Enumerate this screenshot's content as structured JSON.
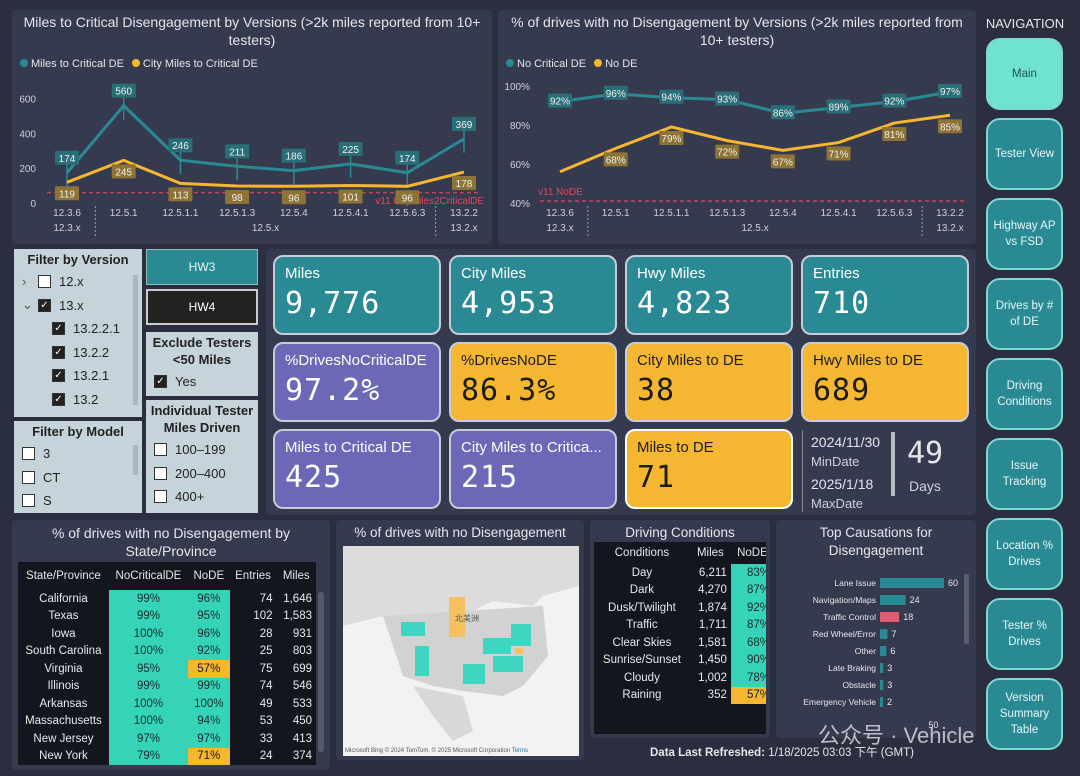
{
  "chart1": {
    "title": "Miles to Critical Disengagement by Versions (>2k miles reported from 10+ testers)",
    "legend": [
      "Miles to Critical DE",
      "City Miles to Critical DE"
    ],
    "colors": {
      "teal": "#2a8a94",
      "gold": "#f5b731"
    },
    "yticks": [
      "600",
      "400",
      "200",
      "0"
    ],
    "ref_label": "v11 CityMiles2CriticalDE",
    "versions": [
      "12.3.6",
      "12.5.1",
      "12.5.1.1",
      "12.5.1.3",
      "12.5.4",
      "12.5.4.1",
      "12.5.6.3",
      "13.2.2"
    ],
    "groups": [
      "12.3.x",
      "12.5.x",
      "13.2.x"
    ],
    "teal_labels": [
      "174",
      "560",
      "246",
      "211",
      "186",
      "225",
      "174",
      "369"
    ],
    "gold_labels": [
      "119",
      "245",
      "113",
      "98",
      "96",
      "101",
      "96",
      "178"
    ]
  },
  "chart2": {
    "title": "% of drives with no Disengagement by Versions (>2k miles reported from 10+ testers)",
    "legend": [
      "No Critical DE",
      "No DE"
    ],
    "yticks": [
      "100%",
      "80%",
      "60%",
      "40%"
    ],
    "ref_label": "v11 NoDE",
    "versions": [
      "12.3.6",
      "12.5.1",
      "12.5.1.1",
      "12.5.1.3",
      "12.5.4",
      "12.5.4.1",
      "12.5.6.3",
      "13.2.2"
    ],
    "groups": [
      "12.3.x",
      "12.5.x",
      "13.2.x"
    ],
    "teal_labels": [
      "92%",
      "96%",
      "94%",
      "93%",
      "86%",
      "89%",
      "92%",
      "97%"
    ],
    "gold_labels": [
      "",
      "68%",
      "79%",
      "72%",
      "67%",
      "71%",
      "81%",
      "85%"
    ]
  },
  "chart_data": [
    {
      "type": "line",
      "title": "Miles to Critical Disengagement by Versions (>2k miles reported from 10+ testers)",
      "categories": [
        "12.3.6",
        "12.5.1",
        "12.5.1.1",
        "12.5.1.3",
        "12.5.4",
        "12.5.4.1",
        "12.5.6.3",
        "13.2.2"
      ],
      "series": [
        {
          "name": "Miles to Critical DE",
          "values": [
            174,
            560,
            246,
            211,
            186,
            225,
            174,
            369
          ]
        },
        {
          "name": "City Miles to Critical DE",
          "values": [
            119,
            245,
            113,
            98,
            96,
            101,
            96,
            178
          ]
        }
      ],
      "reference": {
        "label": "v11 CityMiles2CriticalDE",
        "value": 60
      },
      "ylim": [
        0,
        650
      ]
    },
    {
      "type": "line",
      "title": "% of drives with no Disengagement by Versions (>2k miles reported from 10+ testers)",
      "categories": [
        "12.3.6",
        "12.5.1",
        "12.5.1.1",
        "12.5.1.3",
        "12.5.4",
        "12.5.4.1",
        "12.5.6.3",
        "13.2.2"
      ],
      "series": [
        {
          "name": "No Critical DE",
          "values": [
            92,
            96,
            94,
            93,
            86,
            89,
            92,
            97
          ]
        },
        {
          "name": "No DE",
          "values": [
            56,
            68,
            79,
            72,
            67,
            71,
            81,
            85
          ]
        }
      ],
      "reference": {
        "label": "v11 NoDE",
        "value": 41
      },
      "ylim": [
        40,
        100
      ]
    },
    {
      "type": "bar",
      "title": "Top Causations for Disengagement",
      "categories": [
        "Lane Issue",
        "Navigation/Maps",
        "Traffic Control",
        "Red Wheel/Error",
        "Other",
        "Late Braking",
        "Obstacle",
        "Emergency Vehicle"
      ],
      "values": [
        60,
        24,
        18,
        7,
        6,
        3,
        3,
        2
      ]
    }
  ],
  "filters": {
    "version_title": "Filter by Version",
    "versions": [
      {
        "label": "12.x",
        "checked": false,
        "arrow": "›"
      },
      {
        "label": "13.x",
        "checked": true,
        "arrow": "⌄"
      },
      {
        "label": "13.2.2.1",
        "checked": true
      },
      {
        "label": "13.2.2",
        "checked": true
      },
      {
        "label": "13.2.1",
        "checked": true
      },
      {
        "label": "13.2",
        "checked": true
      }
    ],
    "model_title": "Filter by Model",
    "models": [
      "3",
      "CT",
      "S"
    ],
    "hw3": "HW3",
    "hw4": "HW4",
    "exclude_title": "Exclude Testers <50 Miles",
    "exclude_yes": "Yes",
    "tester_title": "Individual Tester Miles Driven",
    "tester_ranges": [
      "100–199",
      "200–400",
      "400+"
    ]
  },
  "cards": {
    "miles": {
      "label": "Miles",
      "value": "9,776"
    },
    "city_miles": {
      "label": "City Miles",
      "value": "4,953"
    },
    "hwy_miles": {
      "label": "Hwy Miles",
      "value": "4,823"
    },
    "entries": {
      "label": "Entries",
      "value": "710"
    },
    "drives_no_critical": {
      "label": "%DrivesNoCriticalDE",
      "value": "97.2%"
    },
    "drives_no_de": {
      "label": "%DrivesNoDE",
      "value": "86.3%"
    },
    "city_to_de": {
      "label": "City Miles to DE",
      "value": "38"
    },
    "hwy_to_de": {
      "label": "Hwy Miles to DE",
      "value": "689"
    },
    "miles_to_critical": {
      "label": "Miles to Critical DE",
      "value": "425"
    },
    "city_to_critical": {
      "label": "City Miles to Critica...",
      "value": "215"
    },
    "miles_to_de": {
      "label": "Miles to DE",
      "value": "71"
    }
  },
  "dates": {
    "min_date": "2024/11/30",
    "min_label": "MinDate",
    "max_date": "2025/1/18",
    "max_label": "MaxDate",
    "days": "49",
    "days_label": "Days"
  },
  "state_table": {
    "title": "% of drives with no Disengagement by State/Province",
    "headers": [
      "State/Province",
      "NoCriticalDE",
      "NoDE",
      "Entries",
      "Miles"
    ],
    "rows": [
      [
        "California",
        "99%",
        "96%",
        "74",
        "1,646"
      ],
      [
        "Texas",
        "99%",
        "95%",
        "102",
        "1,583"
      ],
      [
        "Iowa",
        "100%",
        "96%",
        "28",
        "931"
      ],
      [
        "South Carolina",
        "100%",
        "92%",
        "25",
        "803"
      ],
      [
        "Virginia",
        "95%",
        "57%",
        "75",
        "699"
      ],
      [
        "Illinois",
        "99%",
        "99%",
        "74",
        "546"
      ],
      [
        "Arkansas",
        "100%",
        "100%",
        "49",
        "533"
      ],
      [
        "Massachusetts",
        "100%",
        "94%",
        "53",
        "450"
      ],
      [
        "New Jersey",
        "97%",
        "97%",
        "33",
        "413"
      ],
      [
        "New York",
        "79%",
        "71%",
        "24",
        "374"
      ]
    ]
  },
  "map": {
    "title": "% of drives with no Disengagement",
    "attribution": "© 2024 TomTom, © 2025 Microsoft Corporation",
    "terms": "Terms",
    "brand": "Microsoft Bing",
    "place": "北美洲"
  },
  "conditions": {
    "title": "Driving Conditions",
    "headers": [
      "Conditions",
      "Miles",
      "NoDE"
    ],
    "rows": [
      [
        "Day",
        "6,211",
        "83%"
      ],
      [
        "Dark",
        "4,270",
        "87%"
      ],
      [
        "Dusk/Twilight",
        "1,874",
        "92%"
      ],
      [
        "Traffic",
        "1,711",
        "87%"
      ],
      [
        "Clear Skies",
        "1,581",
        "68%"
      ],
      [
        "Sunrise/Sunset",
        "1,450",
        "90%"
      ],
      [
        "Cloudy",
        "1,002",
        "78%"
      ],
      [
        "Raining",
        "352",
        "57%"
      ]
    ]
  },
  "causes": {
    "title": "Top Causations for Disengagement",
    "axis_tick": "50",
    "items": [
      {
        "label": "Lane Issue",
        "value": "60"
      },
      {
        "label": "Navigation/Maps",
        "value": "24"
      },
      {
        "label": "Traffic Control",
        "value": "18"
      },
      {
        "label": "Red Wheel/Error",
        "value": "7"
      },
      {
        "label": "Other",
        "value": "6"
      },
      {
        "label": "Late Braking",
        "value": "3"
      },
      {
        "label": "Obstacle",
        "value": "3"
      },
      {
        "label": "Emergency Vehicle",
        "value": "2"
      }
    ]
  },
  "footer": {
    "refresh_label": "Data Last Refreshed:",
    "refresh_value": "1/18/2025 03:03 下午 (GMT)",
    "watermark": "公众号 · Vehicle"
  },
  "nav": {
    "title": "NAVIGATION",
    "items": [
      "Main",
      "Tester View",
      "Highway AP vs FSD",
      "Drives by # of DE",
      "Driving Conditions",
      "Issue Tracking",
      "Location % Drives",
      "Tester % Drives",
      "Version Summary Table"
    ]
  }
}
